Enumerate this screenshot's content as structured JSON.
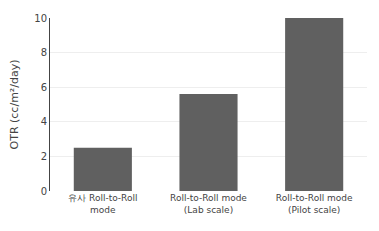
{
  "chart_data": {
    "type": "bar",
    "categories": [
      "유사 Roll-to-Roll\nmode",
      "Roll-to-Roll mode\n(Lab scale)",
      "Roll-to-Roll mode\n(Pilot scale)"
    ],
    "values": [
      2.5,
      5.6,
      10.0
    ],
    "color": "#606060",
    "ylabel": "OTR (cc/m²/day)",
    "ylim": [
      0,
      10
    ],
    "yticks": [
      0,
      2,
      4,
      6,
      8,
      10
    ],
    "grid": true
  }
}
